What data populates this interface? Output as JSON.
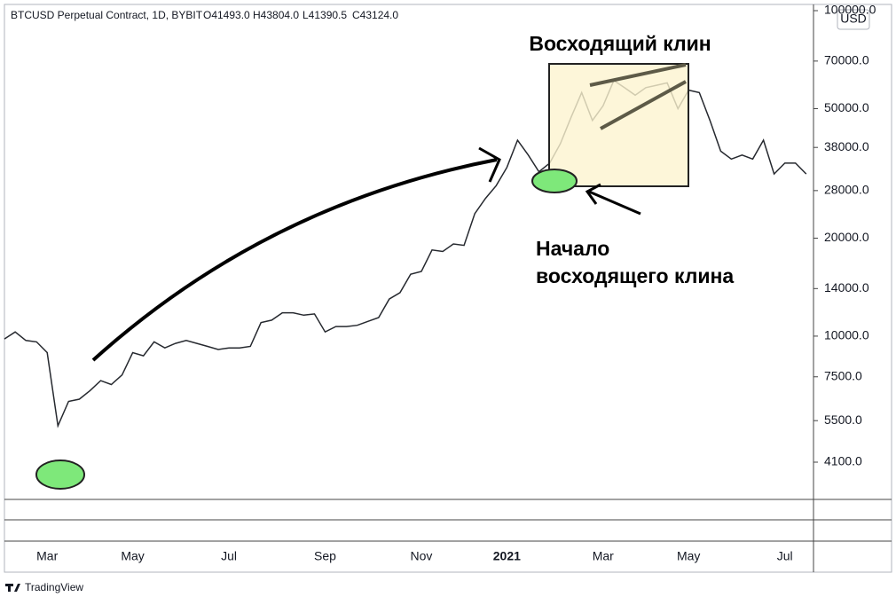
{
  "chart_data": {
    "type": "line",
    "header": "BTCUSD Perpetual Contract, 1D, BYBIT",
    "ohlc": [
      "O41493.0",
      "H43804.0",
      "L41390.5",
      "C43124.0"
    ],
    "currency": "USD",
    "annotations": [
      "Восходящий клин",
      "Начало",
      "восходящего клина"
    ],
    "brand": "TradingView",
    "log_scale": true,
    "grid": false,
    "color": "#26292f",
    "categories": [
      null,
      null,
      null,
      null,
      "Mar",
      null,
      null,
      null,
      null,
      null,
      null,
      null,
      "May",
      null,
      null,
      null,
      null,
      null,
      null,
      null,
      null,
      "Jul",
      null,
      null,
      null,
      null,
      null,
      null,
      null,
      null,
      "Sep",
      null,
      null,
      null,
      null,
      null,
      null,
      null,
      null,
      "Nov",
      null,
      null,
      null,
      null,
      null,
      null,
      null,
      "2021",
      null,
      null,
      null,
      null,
      null,
      null,
      null,
      null,
      "Mar",
      null,
      null,
      null,
      null,
      null,
      null,
      null,
      "May",
      null,
      null,
      null,
      null,
      null,
      null,
      null,
      null,
      "Jul",
      null,
      null
    ],
    "values": [
      9800,
      10300,
      9700,
      9600,
      8900,
      5300,
      6300,
      6400,
      6800,
      7300,
      7100,
      7600,
      8900,
      8700,
      9600,
      9200,
      9500,
      9700,
      9500,
      9300,
      9100,
      9200,
      9200,
      9300,
      11000,
      11200,
      11800,
      11800,
      11600,
      11700,
      10300,
      10700,
      10700,
      10800,
      11100,
      11400,
      13000,
      13600,
      15500,
      15800,
      18400,
      18200,
      19200,
      19000,
      23800,
      26500,
      29000,
      33000,
      40000,
      36000,
      32000,
      34000,
      39000,
      47000,
      56000,
      46000,
      51000,
      61000,
      58000,
      55000,
      58000,
      59000,
      60000,
      50000,
      57000,
      56000,
      46000,
      37000,
      35000,
      36000,
      35000,
      40000,
      31500,
      34000,
      34000,
      31500
    ],
    "ylim": [
      3150,
      104500
    ],
    "yticks": [
      {
        "value": 4100,
        "label": "4100.0"
      },
      {
        "value": 5500,
        "label": "5500.0"
      },
      {
        "value": 7500,
        "label": "7500.0"
      },
      {
        "value": 10000,
        "label": "10000.0"
      },
      {
        "value": 14000,
        "label": "14000.0"
      },
      {
        "value": 20000,
        "label": "20000.0"
      },
      {
        "value": 28000,
        "label": "28000.0"
      },
      {
        "value": 38000,
        "label": "38000.0"
      },
      {
        "value": 50000,
        "label": "50000.0"
      },
      {
        "value": 70000,
        "label": "70000.0"
      },
      {
        "value": 100000,
        "label": "100000.0"
      }
    ]
  }
}
